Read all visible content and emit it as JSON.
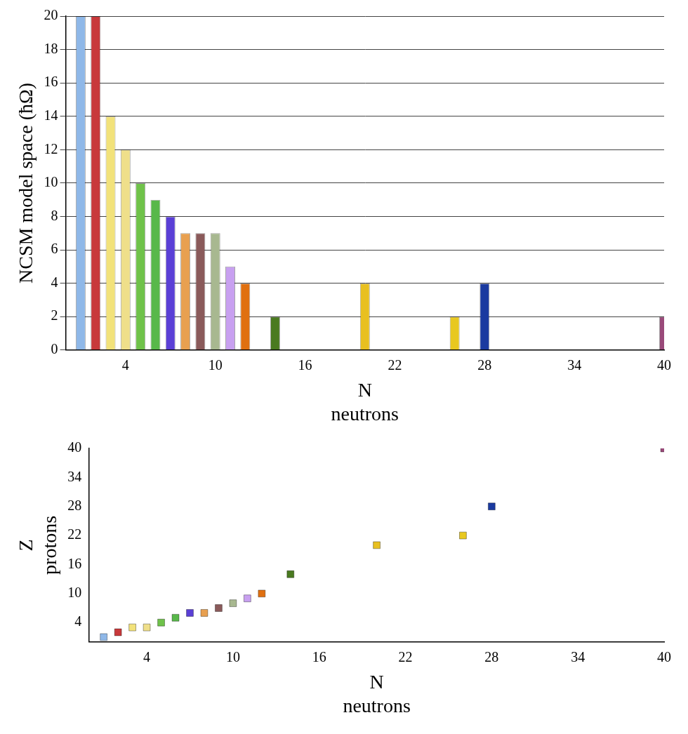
{
  "chart_data": [
    {
      "type": "bar",
      "ylabel": "NCSM model space (ħΩ)",
      "xlabel": [
        "N",
        "neutrons"
      ],
      "x": [
        1,
        2,
        3,
        4,
        5,
        6,
        7,
        8,
        9,
        10,
        11,
        12,
        14,
        20,
        26,
        28,
        40
      ],
      "values": [
        20,
        20,
        14,
        12,
        10,
        9,
        8,
        7,
        7,
        7,
        5,
        4,
        2,
        4,
        2,
        4,
        2
      ],
      "colors": [
        "#8fb8e8",
        "#c8393b",
        "#f2e27a",
        "#efdf8a",
        "#6fc24a",
        "#58b84a",
        "#5a3fd6",
        "#e8a050",
        "#8a5a5a",
        "#a8b890",
        "#c8a0f0",
        "#e07010",
        "#4a7a20",
        "#e8c020",
        "#e8c820",
        "#1a3aa0",
        "#9a4a7a"
      ],
      "xlim": [
        0,
        40
      ],
      "xticks": [
        4,
        10,
        16,
        22,
        28,
        34,
        40
      ],
      "ylim": [
        0,
        20
      ],
      "yticks": [
        0,
        2,
        4,
        6,
        8,
        10,
        12,
        14,
        16,
        18,
        20
      ],
      "grid": true
    },
    {
      "type": "scatter",
      "xlabel": [
        "N",
        "neutrons"
      ],
      "ylabel": [
        "Z",
        "protons"
      ],
      "x": [
        1,
        2,
        3,
        4,
        5,
        6,
        7,
        8,
        9,
        10,
        11,
        12,
        14,
        20,
        26,
        28,
        40
      ],
      "values": [
        1,
        2,
        3,
        3,
        4,
        5,
        6,
        6,
        7,
        8,
        9,
        10,
        14,
        20,
        22,
        28,
        40
      ],
      "colors": [
        "#8fb8e8",
        "#c8393b",
        "#f2e27a",
        "#efdf8a",
        "#6fc24a",
        "#58b84a",
        "#5a3fd6",
        "#e8a050",
        "#8a5a5a",
        "#a8b890",
        "#c8a0f0",
        "#e07010",
        "#4a7a20",
        "#e8c020",
        "#e8c820",
        "#1a3aa0",
        "#9a4a7a"
      ],
      "xlim": [
        0,
        40
      ],
      "xticks": [
        4,
        10,
        16,
        22,
        28,
        34,
        40
      ],
      "ylim": [
        0,
        40
      ],
      "yticks": [
        4,
        10,
        16,
        22,
        28,
        34,
        40
      ],
      "grid": false
    }
  ]
}
